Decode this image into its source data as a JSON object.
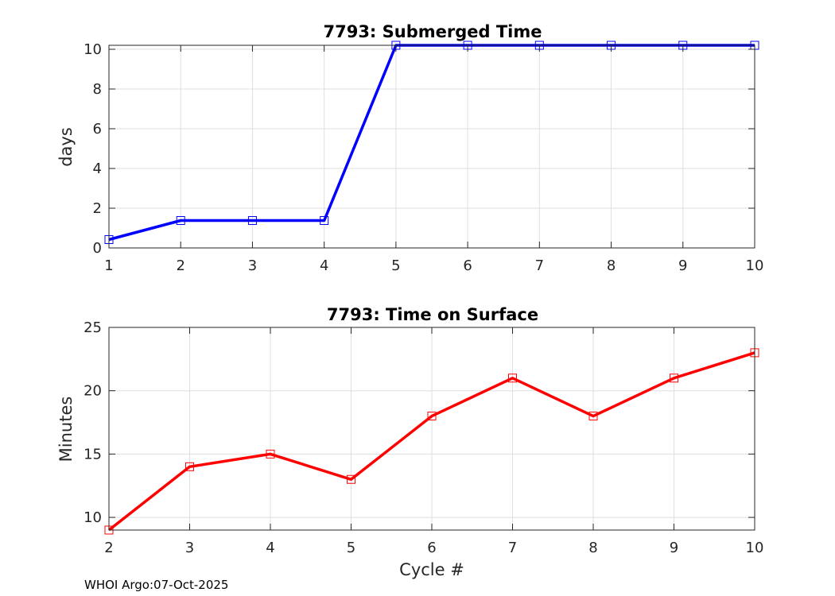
{
  "footer": "WHOI Argo:07-Oct-2025",
  "chart_data": [
    {
      "type": "line",
      "title": "7793: Submerged Time",
      "xlabel": "",
      "ylabel": "days",
      "x": [
        1,
        2,
        3,
        4,
        5,
        6,
        7,
        8,
        9,
        10
      ],
      "series": [
        {
          "values": [
            0.42,
            1.38,
            1.38,
            1.38,
            10.2,
            10.2,
            10.2,
            10.2,
            10.2,
            10.2
          ],
          "color": "#0000ff",
          "marker": "square"
        }
      ],
      "xlim": [
        1,
        10
      ],
      "ylim": [
        0,
        10.2
      ],
      "xticks": [
        1,
        2,
        3,
        4,
        5,
        6,
        7,
        8,
        9,
        10
      ],
      "yticks": [
        0,
        2,
        4,
        6,
        8,
        10
      ],
      "grid": true,
      "legend": "none"
    },
    {
      "type": "line",
      "title": "7793: Time on Surface",
      "xlabel": "Cycle #",
      "ylabel": "Minutes",
      "x": [
        2,
        3,
        4,
        5,
        6,
        7,
        8,
        9,
        10
      ],
      "series": [
        {
          "values": [
            9,
            14,
            15,
            13,
            18,
            21,
            18,
            21,
            23
          ],
          "color": "#ff0000",
          "marker": "square"
        }
      ],
      "xlim": [
        2,
        10
      ],
      "ylim": [
        9,
        25
      ],
      "xticks": [
        2,
        3,
        4,
        5,
        6,
        7,
        8,
        9,
        10
      ],
      "yticks": [
        10,
        15,
        20,
        25
      ],
      "grid": true,
      "legend": "none"
    }
  ]
}
